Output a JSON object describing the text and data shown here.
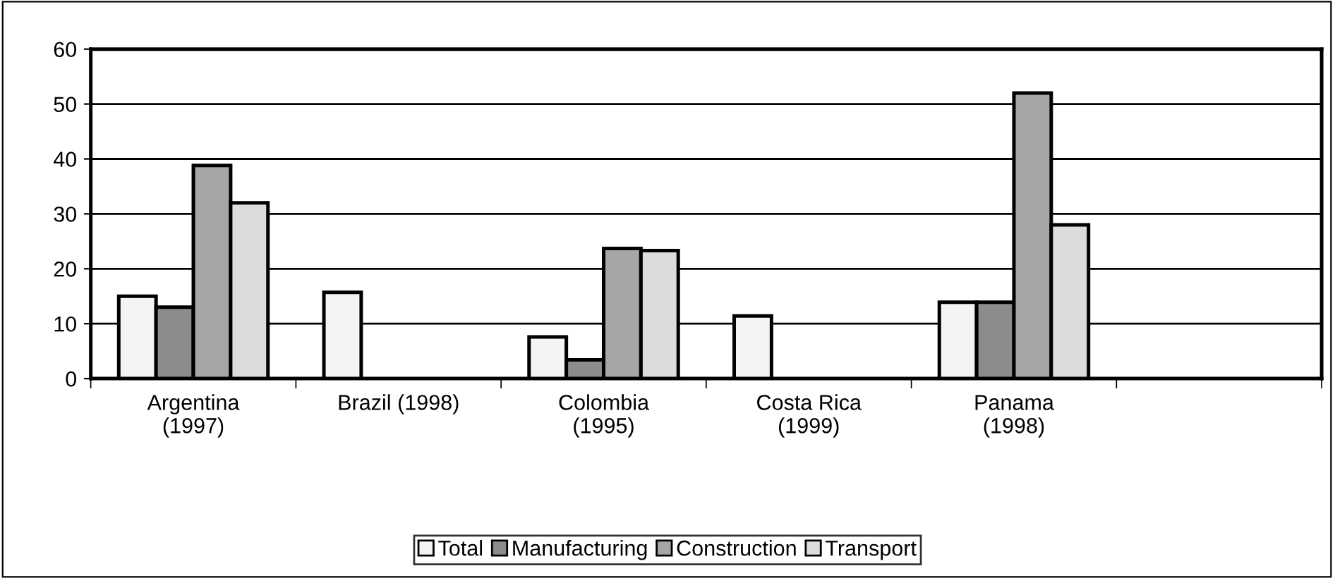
{
  "chart_data": {
    "type": "bar",
    "categories": [
      "Argentina\n(1997)",
      "Brazil (1998)",
      "Colombia\n(1995)",
      "Costa Rica\n(1999)",
      "Panama\n(1998)",
      null
    ],
    "series": [
      {
        "name": "Total",
        "color": "#f4f4f4",
        "values": [
          15,
          15.7,
          7.6,
          11.4,
          13.9,
          null
        ]
      },
      {
        "name": "Manufacturing",
        "color": "#8c8c8c",
        "values": [
          13,
          null,
          3.4,
          null,
          13.9,
          null
        ]
      },
      {
        "name": "Construction",
        "color": "#a6a6a6",
        "values": [
          38.8,
          null,
          23.7,
          null,
          52,
          null
        ]
      },
      {
        "name": "Transport",
        "color": "#dcdcdc",
        "values": [
          32,
          null,
          23.3,
          null,
          28,
          null
        ]
      }
    ],
    "ylim": [
      0,
      60
    ],
    "yticks": [
      0,
      10,
      20,
      30,
      40,
      50,
      60
    ],
    "grid": "y",
    "legend": "bottom"
  }
}
